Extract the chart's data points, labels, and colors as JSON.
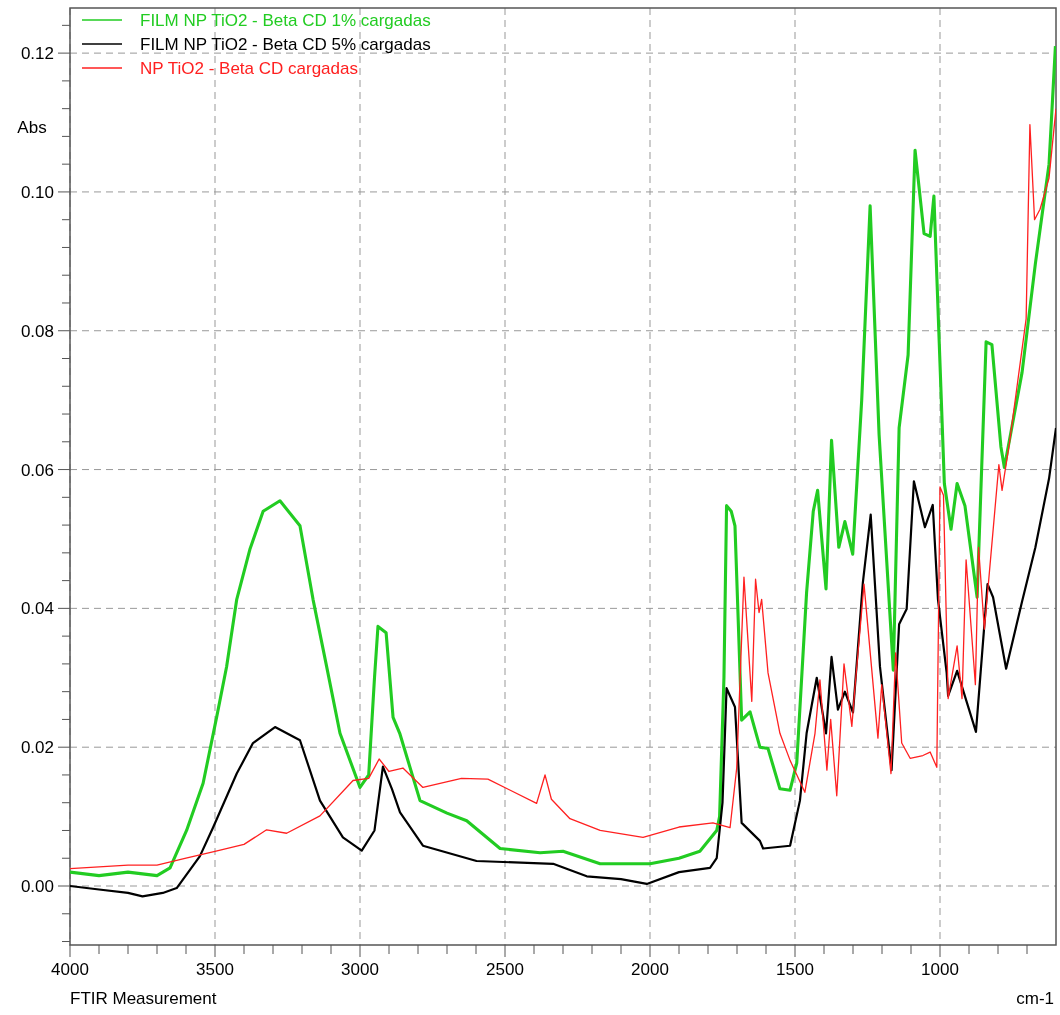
{
  "chart_data": {
    "type": "line",
    "xlabel": "cm-1",
    "ylabel": "Abs",
    "annotations": [
      "FTIR Measurement"
    ],
    "xlim": [
      4000,
      600
    ],
    "ylim": [
      -0.0085,
      0.1265
    ],
    "xticks": [
      4000,
      {
        "value": 3900,
        "label": null
      },
      {
        "value": 3800,
        "label": null
      },
      {
        "value": 3700,
        "label": null
      },
      {
        "value": 3600,
        "label": null
      },
      3500,
      {
        "value": 3400,
        "label": null
      },
      {
        "value": 3300,
        "label": null
      },
      {
        "value": 3200,
        "label": null
      },
      {
        "value": 3100,
        "label": null
      },
      3000,
      {
        "value": 2900,
        "label": null
      },
      {
        "value": 2800,
        "label": null
      },
      {
        "value": 2700,
        "label": null
      },
      {
        "value": 2600,
        "label": null
      },
      2500,
      {
        "value": 2400,
        "label": null
      },
      {
        "value": 2300,
        "label": null
      },
      {
        "value": 2200,
        "label": null
      },
      {
        "value": 2100,
        "label": null
      },
      2000,
      {
        "value": 1900,
        "label": null
      },
      {
        "value": 1800,
        "label": null
      },
      {
        "value": 1700,
        "label": null
      },
      {
        "value": 1600,
        "label": null
      },
      1500,
      {
        "value": 1400,
        "label": null
      },
      {
        "value": 1300,
        "label": null
      },
      {
        "value": 1200,
        "label": null
      },
      {
        "value": 1100,
        "label": null
      },
      1000,
      {
        "value": 900,
        "label": null
      },
      {
        "value": 800,
        "label": null
      },
      {
        "value": 700,
        "label": null
      }
    ],
    "yticks": [
      {
        "value": -0.008,
        "label": null
      },
      {
        "value": -0.004,
        "label": null
      },
      {
        "value": 0,
        "label": "0.00"
      },
      {
        "value": 0.004,
        "label": null
      },
      {
        "value": 0.008,
        "label": null
      },
      {
        "value": 0.012,
        "label": null
      },
      {
        "value": 0.016,
        "label": null
      },
      {
        "value": 0.02,
        "label": "0.02"
      },
      {
        "value": 0.024,
        "label": null
      },
      {
        "value": 0.028,
        "label": null
      },
      {
        "value": 0.032,
        "label": null
      },
      {
        "value": 0.036,
        "label": null
      },
      {
        "value": 0.04,
        "label": "0.04"
      },
      {
        "value": 0.044,
        "label": null
      },
      {
        "value": 0.048,
        "label": null
      },
      {
        "value": 0.052,
        "label": null
      },
      {
        "value": 0.056,
        "label": null
      },
      {
        "value": 0.06,
        "label": "0.06"
      },
      {
        "value": 0.064,
        "label": null
      },
      {
        "value": 0.068,
        "label": null
      },
      {
        "value": 0.072,
        "label": null
      },
      {
        "value": 0.076,
        "label": null
      },
      {
        "value": 0.08,
        "label": "0.08"
      },
      {
        "value": 0.084,
        "label": null
      },
      {
        "value": 0.088,
        "label": null
      },
      {
        "value": 0.092,
        "label": null
      },
      {
        "value": 0.096,
        "label": null
      },
      {
        "value": 0.1,
        "label": "0.10"
      },
      {
        "value": 0.104,
        "label": null
      },
      {
        "value": 0.108,
        "label": null
      },
      {
        "value": 0.112,
        "label": null
      },
      {
        "value": 0.116,
        "label": null
      },
      {
        "value": 0.12,
        "label": "0.12"
      },
      {
        "value": 0.124,
        "label": null
      }
    ],
    "grid": true,
    "legend": "top left",
    "line_style": "solid",
    "marker": "none",
    "series": [
      {
        "name": "FILM NP TiO2 - Beta CD 1% cargadas",
        "color": "#22cc22",
        "x": [
          4000,
          3900,
          3800,
          3700,
          3655,
          3598,
          3541,
          3494,
          3460,
          3425,
          3379,
          3334,
          3276,
          3207,
          3162,
          3115,
          3069,
          3000,
          2970,
          2950,
          2938,
          2910,
          2886,
          2863,
          2793,
          2700,
          2632,
          2517,
          2379,
          2300,
          2172,
          2000,
          1900,
          1828,
          1770,
          1760,
          1745,
          1736,
          1720,
          1707,
          1684,
          1655,
          1621,
          1593,
          1552,
          1517,
          1494,
          1460,
          1437,
          1422,
          1393,
          1374,
          1349,
          1328,
          1301,
          1270,
          1241,
          1210,
          1161,
          1141,
          1110,
          1086,
          1055,
          1034,
          1021,
          985,
          962,
          941,
          914,
          872,
          841,
          821,
          790,
          778,
          717,
          671,
          624,
          602
        ],
        "values": [
          0.002,
          0.0015,
          0.002,
          0.0015,
          0.0026,
          0.008,
          0.0148,
          0.0244,
          0.0316,
          0.0413,
          0.0486,
          0.054,
          0.0555,
          0.0519,
          0.0413,
          0.0316,
          0.022,
          0.0142,
          0.016,
          0.03,
          0.0374,
          0.0365,
          0.0243,
          0.022,
          0.0123,
          0.0105,
          0.0094,
          0.0054,
          0.0048,
          0.005,
          0.0032,
          0.0032,
          0.004,
          0.005,
          0.008,
          0.01,
          0.03,
          0.0548,
          0.054,
          0.0519,
          0.0239,
          0.0251,
          0.02,
          0.0198,
          0.014,
          0.0138,
          0.0177,
          0.0423,
          0.054,
          0.057,
          0.0428,
          0.0642,
          0.0488,
          0.0525,
          0.0478,
          0.07,
          0.098,
          0.065,
          0.0311,
          0.066,
          0.0765,
          0.106,
          0.094,
          0.0936,
          0.0994,
          0.058,
          0.0514,
          0.058,
          0.0548,
          0.0416,
          0.0784,
          0.078,
          0.0633,
          0.0603,
          0.074,
          0.0897,
          0.104,
          0.121
        ]
      },
      {
        "name": "FILM NP TiO2 - Beta CD 5% cargadas",
        "color": "#000000",
        "x": [
          4000,
          3900,
          3800,
          3750,
          3680,
          3632,
          3552,
          3507,
          3425,
          3369,
          3293,
          3207,
          3138,
          3059,
          2994,
          2950,
          2921,
          2890,
          2862,
          2783,
          2598,
          2334,
          2218,
          2100,
          2011,
          1900,
          1793,
          1770,
          1750,
          1736,
          1707,
          1684,
          1621,
          1610,
          1517,
          1483,
          1460,
          1425,
          1393,
          1374,
          1352,
          1328,
          1300,
          1266,
          1239,
          1207,
          1167,
          1141,
          1115,
          1090,
          1052,
          1025,
          1007,
          977,
          972,
          941,
          876,
          836,
          817,
          772,
          717,
          671,
          624,
          600
        ],
        "values": [
          0,
          -0.0005,
          -0.001,
          -0.0015,
          -0.001,
          -0.0003,
          0.0043,
          0.0084,
          0.0162,
          0.0206,
          0.0229,
          0.021,
          0.0123,
          0.007,
          0.0051,
          0.008,
          0.0172,
          0.014,
          0.0106,
          0.0058,
          0.0036,
          0.0032,
          0.0014,
          0.001,
          0.0003,
          0.002,
          0.0026,
          0.004,
          0.012,
          0.0285,
          0.0258,
          0.0091,
          0.0065,
          0.0054,
          0.0058,
          0.0123,
          0.022,
          0.03,
          0.022,
          0.033,
          0.0254,
          0.028,
          0.025,
          0.0437,
          0.0535,
          0.0316,
          0.0167,
          0.0377,
          0.0399,
          0.0583,
          0.0517,
          0.0549,
          0.0413,
          0.0307,
          0.0274,
          0.031,
          0.0222,
          0.0435,
          0.0416,
          0.0313,
          0.041,
          0.0488,
          0.0587,
          0.066
        ]
      },
      {
        "name": "NP TiO2 - Beta CD cargadas",
        "color": "#ff2020",
        "x": [
          4000,
          3800,
          3700,
          3600,
          3500,
          3400,
          3322,
          3253,
          3138,
          3024,
          2970,
          2934,
          2900,
          2852,
          2783,
          2650,
          2559,
          2391,
          2362,
          2340,
          2276,
          2172,
          2024,
          1900,
          1783,
          1724,
          1701,
          1676,
          1649,
          1636,
          1624,
          1615,
          1593,
          1552,
          1517,
          1466,
          1431,
          1414,
          1390,
          1377,
          1356,
          1331,
          1304,
          1293,
          1262,
          1214,
          1201,
          1169,
          1153,
          1132,
          1103,
          1059,
          1034,
          1011,
          1000,
          988,
          972,
          941,
          924,
          910,
          878,
          867,
          847,
          797,
          786,
          760,
          703,
          690,
          674,
          655,
          624,
          600
        ],
        "values": [
          0.0025,
          0.003,
          0.003,
          0.004,
          0.005,
          0.006,
          0.0081,
          0.0076,
          0.0101,
          0.0152,
          0.0155,
          0.0183,
          0.0165,
          0.017,
          0.0142,
          0.0155,
          0.0154,
          0.0119,
          0.016,
          0.0125,
          0.0097,
          0.008,
          0.007,
          0.0085,
          0.0091,
          0.0084,
          0.017,
          0.0445,
          0.0266,
          0.0442,
          0.0394,
          0.0413,
          0.0307,
          0.022,
          0.0181,
          0.0135,
          0.022,
          0.0297,
          0.0167,
          0.024,
          0.013,
          0.032,
          0.023,
          0.0287,
          0.0435,
          0.0213,
          0.029,
          0.0162,
          0.0336,
          0.0206,
          0.0184,
          0.0188,
          0.0193,
          0.0171,
          0.0575,
          0.0563,
          0.027,
          0.0346,
          0.027,
          0.047,
          0.029,
          0.0488,
          0.037,
          0.0607,
          0.057,
          0.064,
          0.0817,
          0.1097,
          0.096,
          0.0975,
          0.102,
          0.112
        ]
      }
    ]
  }
}
